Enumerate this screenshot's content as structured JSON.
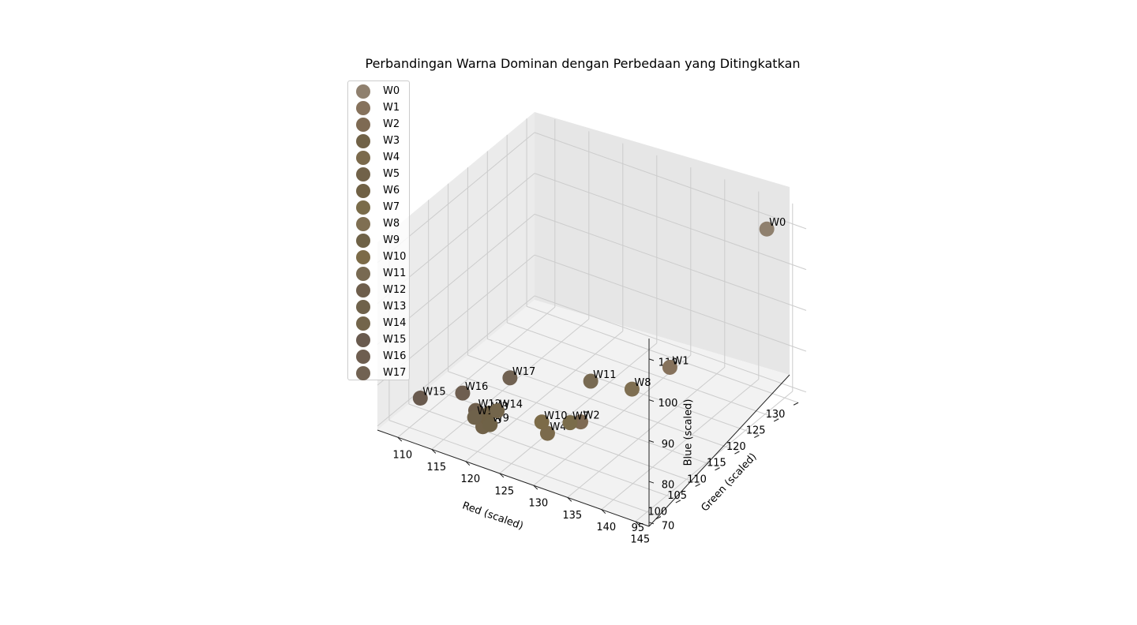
{
  "chart_data": {
    "type": "scatter3d",
    "title": "Perbandingan Warna Dominan dengan Perbedaan yang Ditingkatkan",
    "xlabel": "Red (scaled)",
    "ylabel": "Green (scaled)",
    "zlabel": "Blue (scaled)",
    "xlim": [
      107,
      147
    ],
    "ylim": [
      92,
      132
    ],
    "zlim": [
      69,
      115
    ],
    "xticks": [
      110,
      115,
      120,
      125,
      130,
      135,
      140,
      145
    ],
    "yticks": [
      95,
      100,
      105,
      110,
      115,
      120,
      125,
      130
    ],
    "zticks": [
      70,
      80,
      90,
      100,
      110
    ],
    "grid": true,
    "legend_position": "upper-left",
    "points": [
      {
        "name": "W0",
        "x": 144.5,
        "y": 126.3,
        "z": 113.0,
        "color": "#8f806e"
      },
      {
        "name": "W1",
        "x": 138.5,
        "y": 112.0,
        "z": 87.0,
        "color": "#86725c"
      },
      {
        "name": "W2",
        "x": 130.0,
        "y": 104.0,
        "z": 75.0,
        "color": "#7e6a53"
      },
      {
        "name": "W3",
        "x": 120.0,
        "y": 98.0,
        "z": 76.0,
        "color": "#716247"
      },
      {
        "name": "W4",
        "x": 128.0,
        "y": 99.0,
        "z": 75.0,
        "color": "#7b6a4c"
      },
      {
        "name": "W5",
        "x": 120.5,
        "y": 95.5,
        "z": 75.0,
        "color": "#716249"
      },
      {
        "name": "W6",
        "x": 120.0,
        "y": 97.0,
        "z": 76.0,
        "color": "#706145"
      },
      {
        "name": "W7",
        "x": 129.0,
        "y": 103.0,
        "z": 75.0,
        "color": "#7a6c4a"
      },
      {
        "name": "W8",
        "x": 133.5,
        "y": 111.0,
        "z": 79.5,
        "color": "#7f6f52"
      },
      {
        "name": "W9",
        "x": 121.0,
        "y": 96.5,
        "z": 75.0,
        "color": "#6f6247"
      },
      {
        "name": "W10",
        "x": 126.0,
        "y": 101.0,
        "z": 75.0,
        "color": "#7c6b48"
      },
      {
        "name": "W11",
        "x": 128.0,
        "y": 110.0,
        "z": 79.0,
        "color": "#786a52"
      },
      {
        "name": "W12",
        "x": 118.0,
        "y": 98.0,
        "z": 75.5,
        "color": "#6e5e4c"
      },
      {
        "name": "W13",
        "x": 119.0,
        "y": 96.0,
        "z": 76.0,
        "color": "#6f624b"
      },
      {
        "name": "W14",
        "x": 120.0,
        "y": 100.0,
        "z": 75.0,
        "color": "#73654b"
      },
      {
        "name": "W15",
        "x": 111.0,
        "y": 96.0,
        "z": 76.0,
        "color": "#695a4e"
      },
      {
        "name": "W16",
        "x": 115.5,
        "y": 99.0,
        "z": 77.5,
        "color": "#6e5e50"
      },
      {
        "name": "W17",
        "x": 119.0,
        "y": 105.0,
        "z": 78.5,
        "color": "#716252"
      }
    ]
  }
}
